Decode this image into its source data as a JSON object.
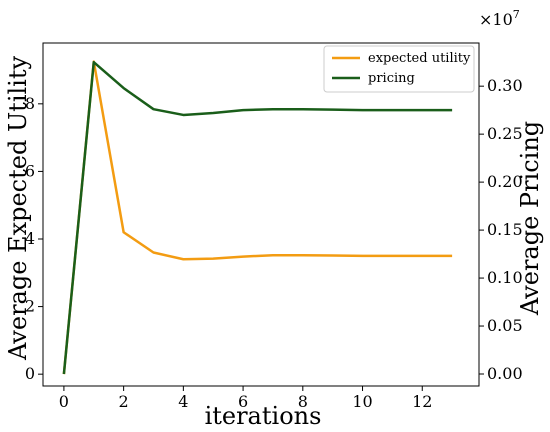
{
  "chart_data": {
    "type": "line",
    "xlabel": "iterations",
    "ylabel_left": "Average Expected Utility",
    "ylabel_right": "Average Pricing",
    "right_axis_multiplier": "×10",
    "right_axis_exponent": "7",
    "x": [
      0,
      1,
      2,
      3,
      4,
      5,
      6,
      7,
      8,
      9,
      10,
      11,
      12,
      13
    ],
    "xlim": [
      -0.7,
      13.9
    ],
    "x_ticks": [
      0,
      2,
      4,
      6,
      8,
      10,
      12
    ],
    "y_left_ticks": [
      0,
      2,
      4,
      6,
      8
    ],
    "y_left_lim": [
      -0.35,
      9.8
    ],
    "y_right_ticks": [
      "0.00",
      "0.05",
      "0.10",
      "0.15",
      "0.20",
      "0.25",
      "0.30"
    ],
    "y_right_lim": [
      -0.0125,
      0.345
    ],
    "legend_position": "top-right",
    "series": [
      {
        "name": "expected utility",
        "axis": "left",
        "color": "#f39c12",
        "values": [
          0,
          9.25,
          4.2,
          3.6,
          3.4,
          3.42,
          3.48,
          3.52,
          3.52,
          3.51,
          3.5,
          3.5,
          3.5,
          3.5
        ]
      },
      {
        "name": "pricing",
        "axis": "right",
        "color": "#1a5e1a",
        "values": [
          0,
          0.325,
          0.298,
          0.276,
          0.27,
          0.272,
          0.275,
          0.276,
          0.276,
          0.2755,
          0.275,
          0.275,
          0.275,
          0.275
        ]
      }
    ]
  }
}
